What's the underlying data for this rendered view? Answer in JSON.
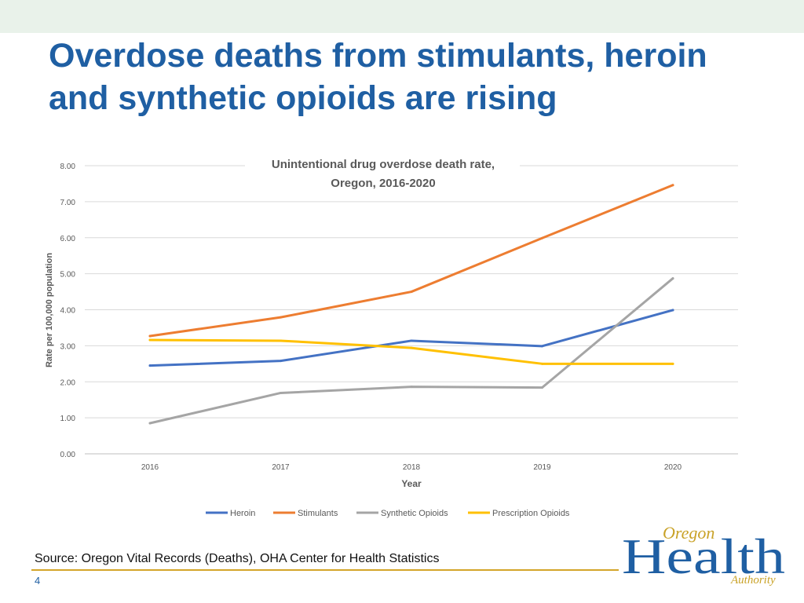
{
  "slide": {
    "title_line1": "Overdose deaths from stimulants, heroin",
    "title_line2": "and synthetic opioids are rising",
    "source": "Source: Oregon Vital Records (Deaths), OHA Center for Health Statistics",
    "page_number": "4"
  },
  "logo": {
    "word1": "Oregon",
    "word2": "Health",
    "word3": "Authority",
    "color": "#1f5fa3",
    "accent_color": "#c9a227"
  },
  "colors": {
    "title": "#1f5fa3",
    "footer_rule": "#d4a52a",
    "top_band": "#e9f2ea"
  },
  "chart_data": {
    "type": "line",
    "title_line1": "Unintentional drug overdose death rate,",
    "title_line2": "Oregon, 2016-2020",
    "xlabel": "Year",
    "ylabel": "Rate per 100,000 population",
    "categories": [
      "2016",
      "2017",
      "2018",
      "2019",
      "2020"
    ],
    "ylim": [
      0,
      8
    ],
    "yticks": [
      "0.00",
      "1.00",
      "2.00",
      "3.00",
      "4.00",
      "5.00",
      "6.00",
      "7.00",
      "8.00"
    ],
    "grid": true,
    "legend_position": "bottom",
    "series": [
      {
        "name": "Heroin",
        "color": "#4472c4",
        "values": [
          2.45,
          2.58,
          3.14,
          2.99,
          3.99
        ]
      },
      {
        "name": "Stimulants",
        "color": "#ed7d31",
        "values": [
          3.27,
          3.79,
          4.5,
          5.99,
          7.46
        ]
      },
      {
        "name": "Synthetic Opioids",
        "color": "#a5a5a5",
        "values": [
          0.85,
          1.69,
          1.86,
          1.84,
          4.87
        ]
      },
      {
        "name": "Prescription Opioids",
        "color": "#ffc000",
        "values": [
          3.16,
          3.14,
          2.94,
          2.5,
          2.5
        ]
      }
    ]
  }
}
